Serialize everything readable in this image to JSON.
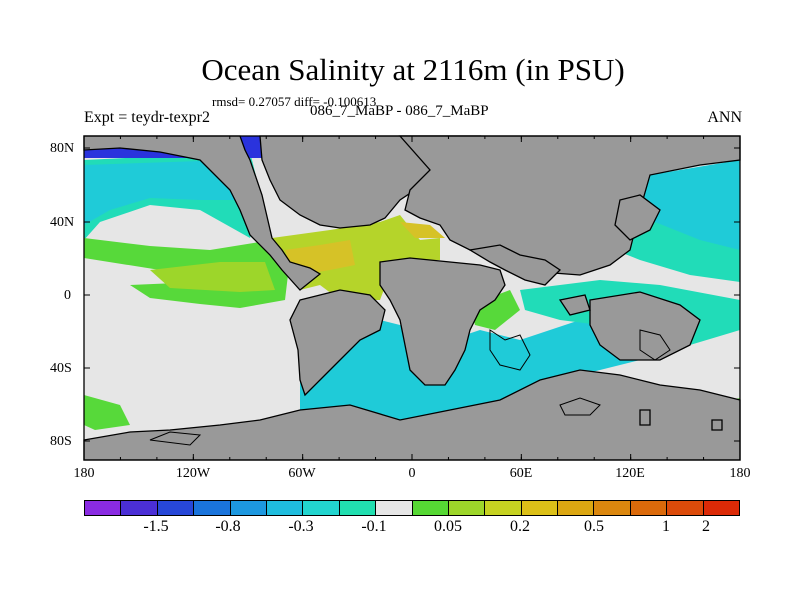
{
  "title": "Ocean Salinity at 2116m (in PSU)",
  "stats": "rmsd= 0.27057 diff= -0.100613",
  "expt": "Expt = teydr-texpr2",
  "case": "086_7_MaBP - 086_7_MaBP",
  "season": "ANN",
  "y_axis_labels": [
    "80N",
    "40N",
    "0",
    "40S",
    "80S"
  ],
  "x_axis_labels": [
    "180",
    "120W",
    "60W",
    "0",
    "60E",
    "120E",
    "180"
  ],
  "colorbar": {
    "colors": [
      "#8a2be2",
      "#4b2fd6",
      "#2747d8",
      "#1a74dc",
      "#1d98e0",
      "#1fbdde",
      "#22d5cf",
      "#21dfb0",
      "#e6e6e6",
      "#56d834",
      "#9dd62a",
      "#c6d221",
      "#dcc018",
      "#dca712",
      "#db870e",
      "#db6a0b",
      "#dc4b0a",
      "#dc2a07"
    ],
    "labels": [
      "-1.5",
      "-0.8",
      "-0.3",
      "-0.1",
      "0.05",
      "0.2",
      "0.5",
      "1",
      "2"
    ]
  },
  "map_colors": {
    "land": "#999999",
    "neutral": "#e6e6e6",
    "cyan": "#1fcbd8",
    "teal": "#21dcb8",
    "arctic": "#2a33dd",
    "green": "#57d93a",
    "yellow_green": "#b5d42a",
    "yellow": "#d6c227"
  }
}
